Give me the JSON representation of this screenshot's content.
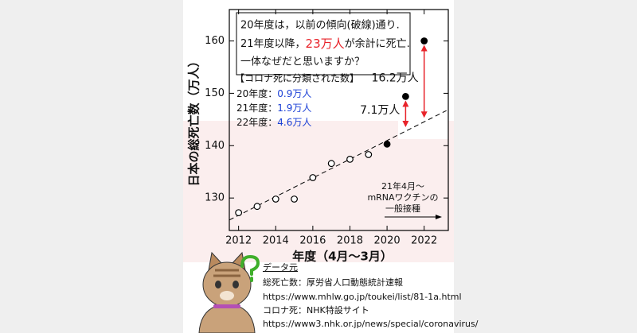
{
  "chart_data": {
    "type": "scatter",
    "xlabel": "年度（4月～3月）",
    "ylabel": "日本の総死亡数（万人）",
    "xlim": [
      2011.5,
      2023.3
    ],
    "ylim": [
      123.8,
      166
    ],
    "xticks": [
      2012,
      2014,
      2016,
      2018,
      2020,
      2022
    ],
    "yticks": [
      130,
      140,
      150,
      160
    ],
    "series": [
      {
        "marker": "open",
        "color": "#000000",
        "x": [
          2012,
          2013,
          2014,
          2015,
          2016,
          2017,
          2018,
          2019
        ],
        "values": [
          127.2,
          128.4,
          129.8,
          129.8,
          133.9,
          136.6,
          137.4,
          138.3
        ]
      },
      {
        "marker": "filled",
        "color": "#000000",
        "x": [
          2020,
          2021,
          2022
        ],
        "values": [
          140.3,
          149.4,
          160
        ],
        "excess_labels": [
          null,
          "7.1万人",
          "16.2万人"
        ],
        "excess_color": "#e8232a"
      }
    ],
    "trend": {
      "x": [
        2011.5,
        2023.2
      ],
      "values": [
        125.8,
        146.7
      ]
    },
    "note": {
      "line1": "20年度は，以前の傾向(破線)通り.",
      "line2a": "21年度以降，",
      "line2b": "23万人",
      "line2c": "が余計に死亡.",
      "line3": "一体なぜだと思いますか？"
    },
    "covid_deaths": {
      "title": "【コロナ死に分類された数】",
      "rows": [
        {
          "label": "20年度：",
          "value": "0.9万人"
        },
        {
          "label": "21年度：",
          "value": "1.9万人"
        },
        {
          "label": "22年度：",
          "value": "4.6万人"
        }
      ]
    },
    "vaccine": [
      "21年4月～",
      "mRNAワクチンの",
      "一般接種"
    ]
  },
  "source": {
    "title": "データ元",
    "deaths": "総死亡数：厚労省人口動態統計速報",
    "deaths_url": "https://www.mhlw.go.jp/toukei/list/81-1a.html",
    "covid": "コロナ死：NHK特設サイト",
    "covid_url": "https://www3.nhk.or.jp/news/special/coronavirus/"
  }
}
